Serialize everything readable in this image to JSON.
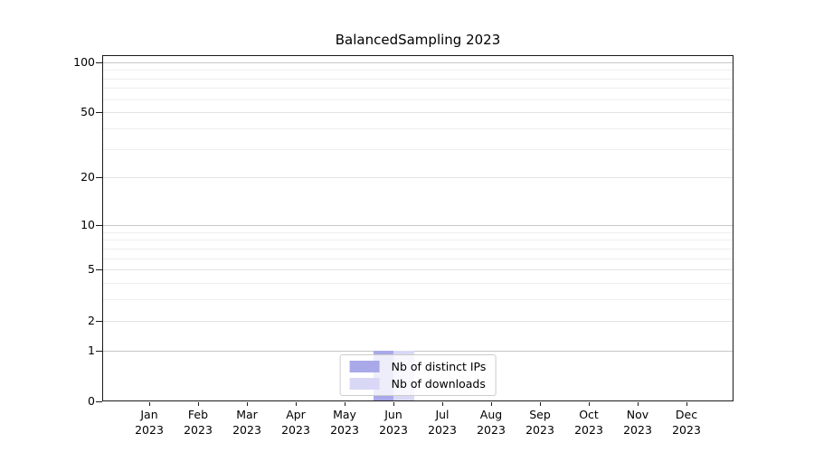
{
  "title": "BalancedSampling 2023",
  "chart_data": {
    "type": "bar",
    "title": "BalancedSampling 2023",
    "categories": [
      "Jan 2023",
      "Feb 2023",
      "Mar 2023",
      "Apr 2023",
      "May 2023",
      "Jun 2023",
      "Jul 2023",
      "Aug 2023",
      "Sep 2023",
      "Oct 2023",
      "Nov 2023",
      "Dec 2023"
    ],
    "x_tick_months": [
      "Jan",
      "Feb",
      "Mar",
      "Apr",
      "May",
      "Jun",
      "Jul",
      "Aug",
      "Sep",
      "Oct",
      "Nov",
      "Dec"
    ],
    "x_tick_year": "2023",
    "series": [
      {
        "name": "Nb of distinct IPs",
        "color": "#a9a9ea",
        "values": [
          0,
          0,
          0,
          0,
          0,
          1,
          0,
          0,
          0,
          0,
          0,
          0
        ]
      },
      {
        "name": "Nb of downloads",
        "color": "#d8d8f6",
        "values": [
          0,
          0,
          0,
          0,
          0,
          1,
          0,
          0,
          0,
          0,
          0,
          0
        ]
      }
    ],
    "xlabel": "",
    "ylabel": "",
    "yscale": "log1p",
    "ylim": [
      0,
      110
    ],
    "yticks": [
      0,
      1,
      2,
      5,
      10,
      20,
      50,
      100
    ],
    "ytick_labels": [
      "0",
      "1",
      "2",
      "5",
      "10",
      "20",
      "50",
      "100"
    ],
    "ytick_major": [
      1,
      10,
      100
    ],
    "ytick_mid": [
      2,
      5,
      20,
      50
    ],
    "ytick_minor": [
      3,
      4,
      6,
      7,
      8,
      9,
      30,
      40,
      60,
      70,
      80,
      90
    ],
    "grid": true,
    "legend_position": "lower center",
    "colors": {
      "grid_major": "#c6c6c6",
      "grid_mid": "#e3e3e3",
      "grid_minor": "#eeeeee",
      "spine": "#1a1a1a",
      "background": "#ffffff"
    }
  },
  "legend": {
    "items": [
      {
        "label": "Nb of distinct IPs"
      },
      {
        "label": "Nb of downloads"
      }
    ]
  }
}
